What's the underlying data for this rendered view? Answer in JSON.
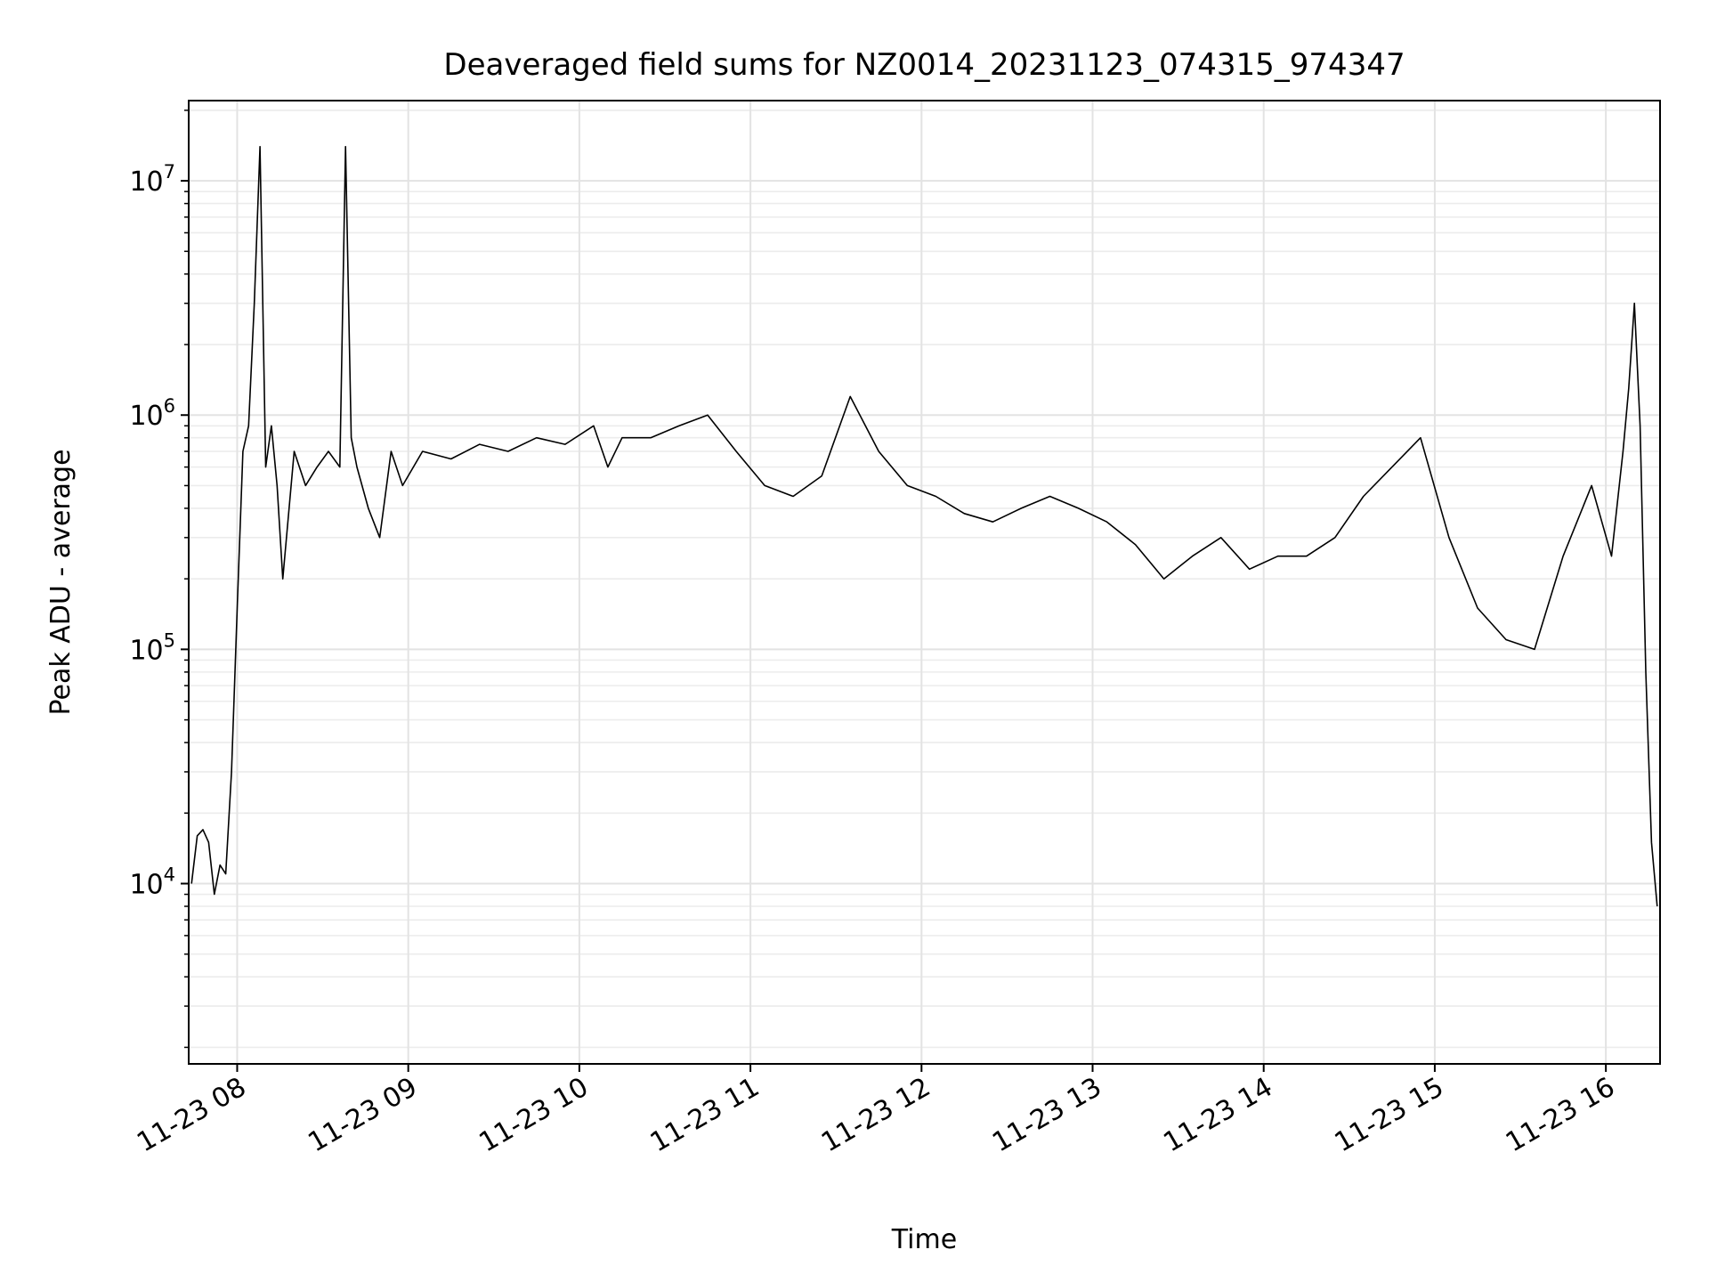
{
  "chart_data": {
    "type": "line",
    "title": "Deaveraged field sums for NZ0014_20231123_074315_974347",
    "xlabel": "Time",
    "ylabel": "Peak ADU - average",
    "yscale": "log",
    "grid": true,
    "line_color": "#000000",
    "xlim": [
      "2023-11-23 07:43",
      "2023-11-23 16:19"
    ],
    "ylim": [
      1700,
      22000000
    ],
    "x_ticks": [
      {
        "label": "11-23 08",
        "value": "2023-11-23 08:00"
      },
      {
        "label": "11-23 09",
        "value": "2023-11-23 09:00"
      },
      {
        "label": "11-23 10",
        "value": "2023-11-23 10:00"
      },
      {
        "label": "11-23 11",
        "value": "2023-11-23 11:00"
      },
      {
        "label": "11-23 12",
        "value": "2023-11-23 12:00"
      },
      {
        "label": "11-23 13",
        "value": "2023-11-23 13:00"
      },
      {
        "label": "11-23 14",
        "value": "2023-11-23 14:00"
      },
      {
        "label": "11-23 15",
        "value": "2023-11-23 15:00"
      },
      {
        "label": "11-23 16",
        "value": "2023-11-23 16:00"
      }
    ],
    "y_ticks": [
      {
        "base": "10",
        "exp": "4",
        "value": 10000
      },
      {
        "base": "10",
        "exp": "5",
        "value": 100000
      },
      {
        "base": "10",
        "exp": "6",
        "value": 1000000
      },
      {
        "base": "10",
        "exp": "7",
        "value": 10000000
      }
    ],
    "series": [
      {
        "x": [
          "2023-11-23 07:44",
          "2023-11-23 07:46",
          "2023-11-23 07:48",
          "2023-11-23 07:50",
          "2023-11-23 07:52",
          "2023-11-23 07:54",
          "2023-11-23 07:56",
          "2023-11-23 07:58",
          "2023-11-23 08:00",
          "2023-11-23 08:02",
          "2023-11-23 08:04",
          "2023-11-23 08:06",
          "2023-11-23 08:08",
          "2023-11-23 08:10",
          "2023-11-23 08:12",
          "2023-11-23 08:14",
          "2023-11-23 08:16",
          "2023-11-23 08:20",
          "2023-11-23 08:24",
          "2023-11-23 08:28",
          "2023-11-23 08:32",
          "2023-11-23 08:36",
          "2023-11-23 08:38",
          "2023-11-23 08:40",
          "2023-11-23 08:42",
          "2023-11-23 08:46",
          "2023-11-23 08:50",
          "2023-11-23 08:54",
          "2023-11-23 08:58",
          "2023-11-23 09:05",
          "2023-11-23 09:15",
          "2023-11-23 09:25",
          "2023-11-23 09:35",
          "2023-11-23 09:45",
          "2023-11-23 09:55",
          "2023-11-23 10:05",
          "2023-11-23 10:10",
          "2023-11-23 10:15",
          "2023-11-23 10:25",
          "2023-11-23 10:35",
          "2023-11-23 10:45",
          "2023-11-23 10:55",
          "2023-11-23 11:05",
          "2023-11-23 11:15",
          "2023-11-23 11:25",
          "2023-11-23 11:35",
          "2023-11-23 11:45",
          "2023-11-23 11:55",
          "2023-11-23 12:05",
          "2023-11-23 12:15",
          "2023-11-23 12:25",
          "2023-11-23 12:35",
          "2023-11-23 12:45",
          "2023-11-23 12:55",
          "2023-11-23 13:05",
          "2023-11-23 13:15",
          "2023-11-23 13:25",
          "2023-11-23 13:35",
          "2023-11-23 13:45",
          "2023-11-23 13:55",
          "2023-11-23 14:05",
          "2023-11-23 14:15",
          "2023-11-23 14:25",
          "2023-11-23 14:35",
          "2023-11-23 14:45",
          "2023-11-23 14:55",
          "2023-11-23 15:05",
          "2023-11-23 15:15",
          "2023-11-23 15:25",
          "2023-11-23 15:35",
          "2023-11-23 15:45",
          "2023-11-23 15:55",
          "2023-11-23 16:02",
          "2023-11-23 16:06",
          "2023-11-23 16:08",
          "2023-11-23 16:10",
          "2023-11-23 16:12",
          "2023-11-23 16:14",
          "2023-11-23 16:16",
          "2023-11-23 16:18"
        ],
        "y": [
          10000,
          16000,
          17000,
          15000,
          9000,
          12000,
          11000,
          30000,
          150000,
          700000,
          900000,
          3000000,
          14000000,
          600000,
          900000,
          500000,
          200000,
          700000,
          500000,
          600000,
          700000,
          600000,
          14000000,
          800000,
          600000,
          400000,
          300000,
          700000,
          500000,
          700000,
          650000,
          750000,
          700000,
          800000,
          750000,
          900000,
          600000,
          800000,
          800000,
          900000,
          1000000,
          700000,
          500000,
          450000,
          550000,
          1200000,
          700000,
          500000,
          450000,
          380000,
          350000,
          400000,
          450000,
          400000,
          350000,
          280000,
          200000,
          250000,
          300000,
          220000,
          250000,
          250000,
          300000,
          450000,
          600000,
          800000,
          300000,
          150000,
          110000,
          100000,
          250000,
          500000,
          250000,
          700000,
          1300000,
          3000000,
          900000,
          80000,
          15000,
          8000
        ]
      }
    ]
  }
}
